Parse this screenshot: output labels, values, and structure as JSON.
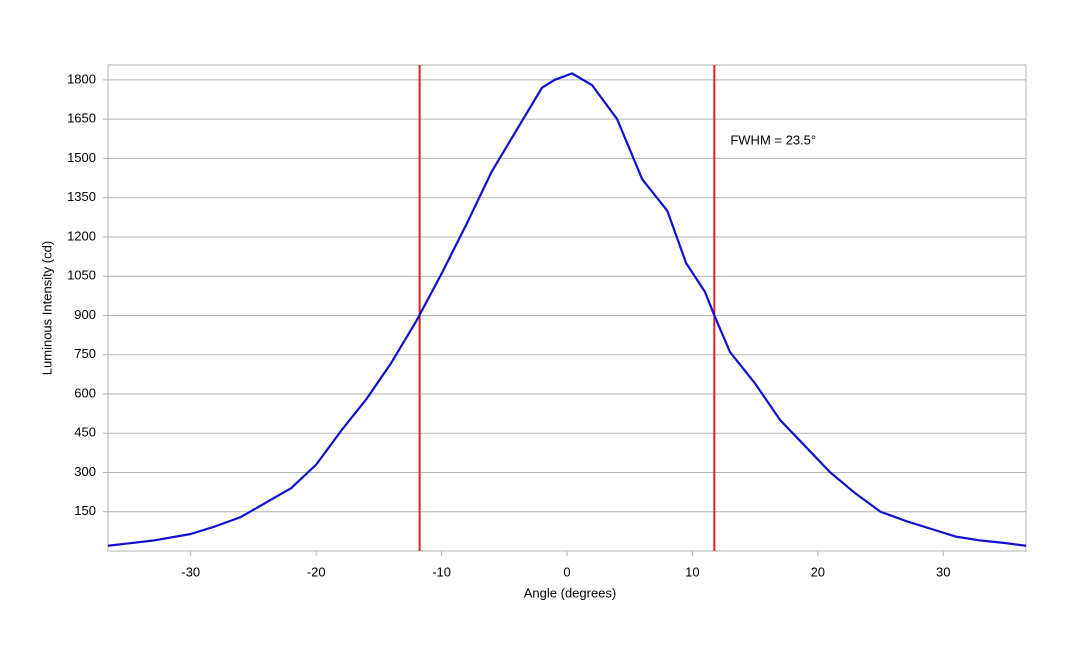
{
  "chart_data": {
    "type": "line",
    "x_label": "Angle (degrees)",
    "y_label": "Luminous Intensity (cd)",
    "annotation": "FWHM = 23.5°",
    "xlim": [
      -36.6,
      36.6
    ],
    "ylim": [
      0,
      1857
    ],
    "xticks": [
      -30,
      -20,
      -10,
      0,
      10,
      20,
      30
    ],
    "yticks": [
      150,
      300,
      450,
      600,
      750,
      900,
      1050,
      1200,
      1350,
      1500,
      1650,
      1800
    ],
    "grid": true,
    "vlines": {
      "color": "#e02020",
      "values": [
        -11.75,
        11.75
      ]
    },
    "series": [
      {
        "name": "Luminous Intensity",
        "color": "#1010d0",
        "x": [
          -36.6,
          -33,
          -30,
          -28,
          -26,
          -24,
          -22,
          -20,
          -18,
          -16,
          -14,
          -12,
          -10,
          -8,
          -6,
          -4,
          -2,
          -1,
          0.4,
          2,
          4,
          6,
          8,
          9.5,
          11,
          11.75,
          13,
          15,
          17,
          19,
          21,
          23,
          25,
          27,
          29,
          31,
          33,
          35,
          36.6
        ],
        "values": [
          20,
          40,
          65,
          95,
          130,
          185,
          240,
          330,
          460,
          580,
          720,
          880,
          1060,
          1250,
          1450,
          1610,
          1770,
          1800,
          1825,
          1780,
          1650,
          1420,
          1300,
          1100,
          990,
          900,
          760,
          640,
          500,
          400,
          300,
          220,
          150,
          115,
          85,
          55,
          40,
          30,
          20
        ]
      }
    ]
  }
}
